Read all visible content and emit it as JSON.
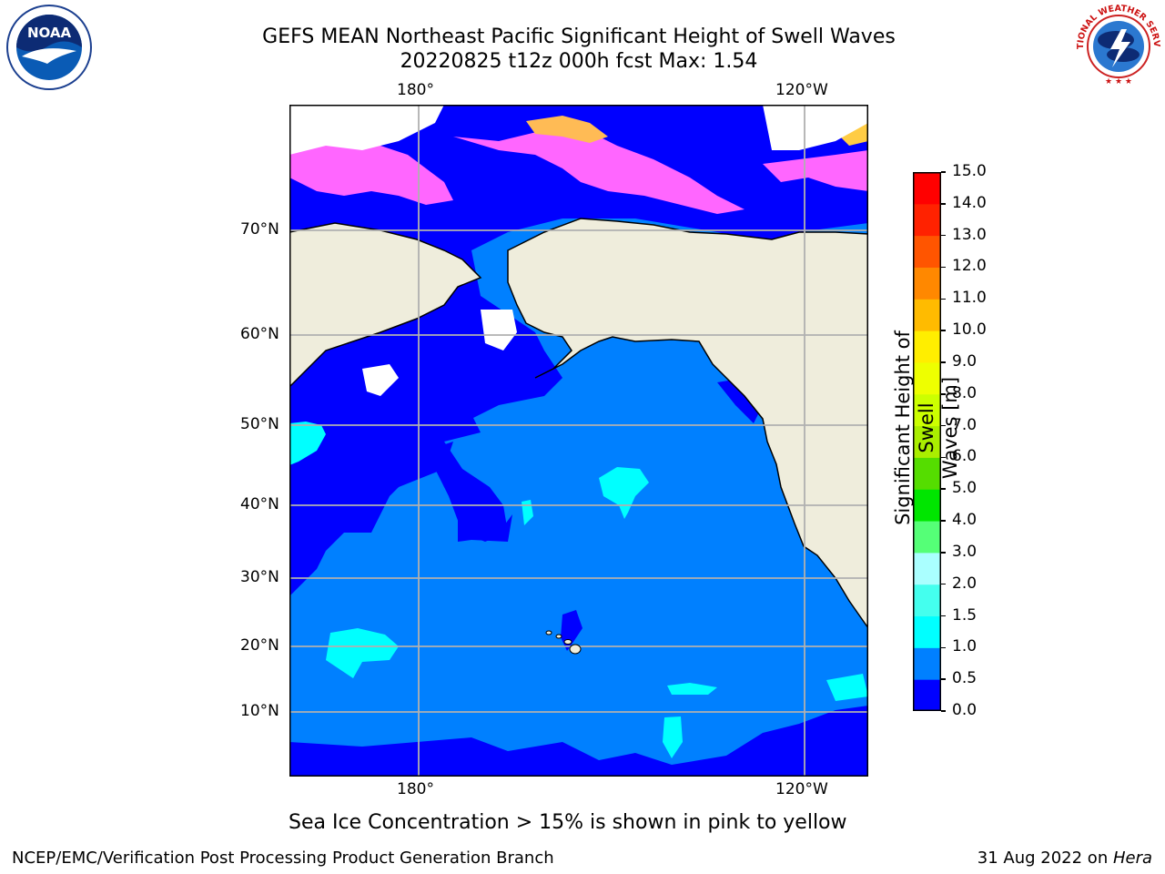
{
  "header": {
    "title_line1": "GEFS MEAN Northeast Pacific Significant Height of Swell Waves",
    "title_line2": "20220825 t12z 000h fcst   Max: 1.54"
  },
  "logos": {
    "left": "NOAA",
    "right": "NATIONAL WEATHER SERVICE"
  },
  "map": {
    "lon_labels": [
      "180°",
      "120°W"
    ],
    "lat_labels": [
      "70°N",
      "60°N",
      "50°N",
      "40°N",
      "30°N",
      "20°N",
      "10°N"
    ],
    "land_color": "#efeddc",
    "ice_colors": [
      "#ff66ff",
      "#ff9933",
      "#ffcc33"
    ]
  },
  "colorbar": {
    "title": "Significant Height of Swell Waves [m]",
    "title_line1": "Significant Height of Swell",
    "title_line2": "Waves [m]",
    "ticks": [
      "0.0",
      "0.5",
      "1.0",
      "1.5",
      "2.0",
      "3.0",
      "4.0",
      "5.0",
      "6.0",
      "7.0",
      "8.0",
      "9.0",
      "10.0",
      "11.0",
      "12.0",
      "13.0",
      "14.0",
      "15.0"
    ],
    "colors": [
      "#0000ff",
      "#0080ff",
      "#00ffff",
      "#44ffee",
      "#aaffff",
      "#55ff77",
      "#00e600",
      "#55dd00",
      "#aaee00",
      "#ccff00",
      "#eeff00",
      "#ffee00",
      "#ffbb00",
      "#ff8800",
      "#ff5500",
      "#ff2200",
      "#ff0000"
    ]
  },
  "caption": "Sea Ice Concentration > 15% is shown in pink to yellow",
  "footer": {
    "left": "NCEP/EMC/Verification Post Processing Product Generation Branch",
    "right_date": "31 Aug 2022 on ",
    "right_machine": "Hera"
  }
}
